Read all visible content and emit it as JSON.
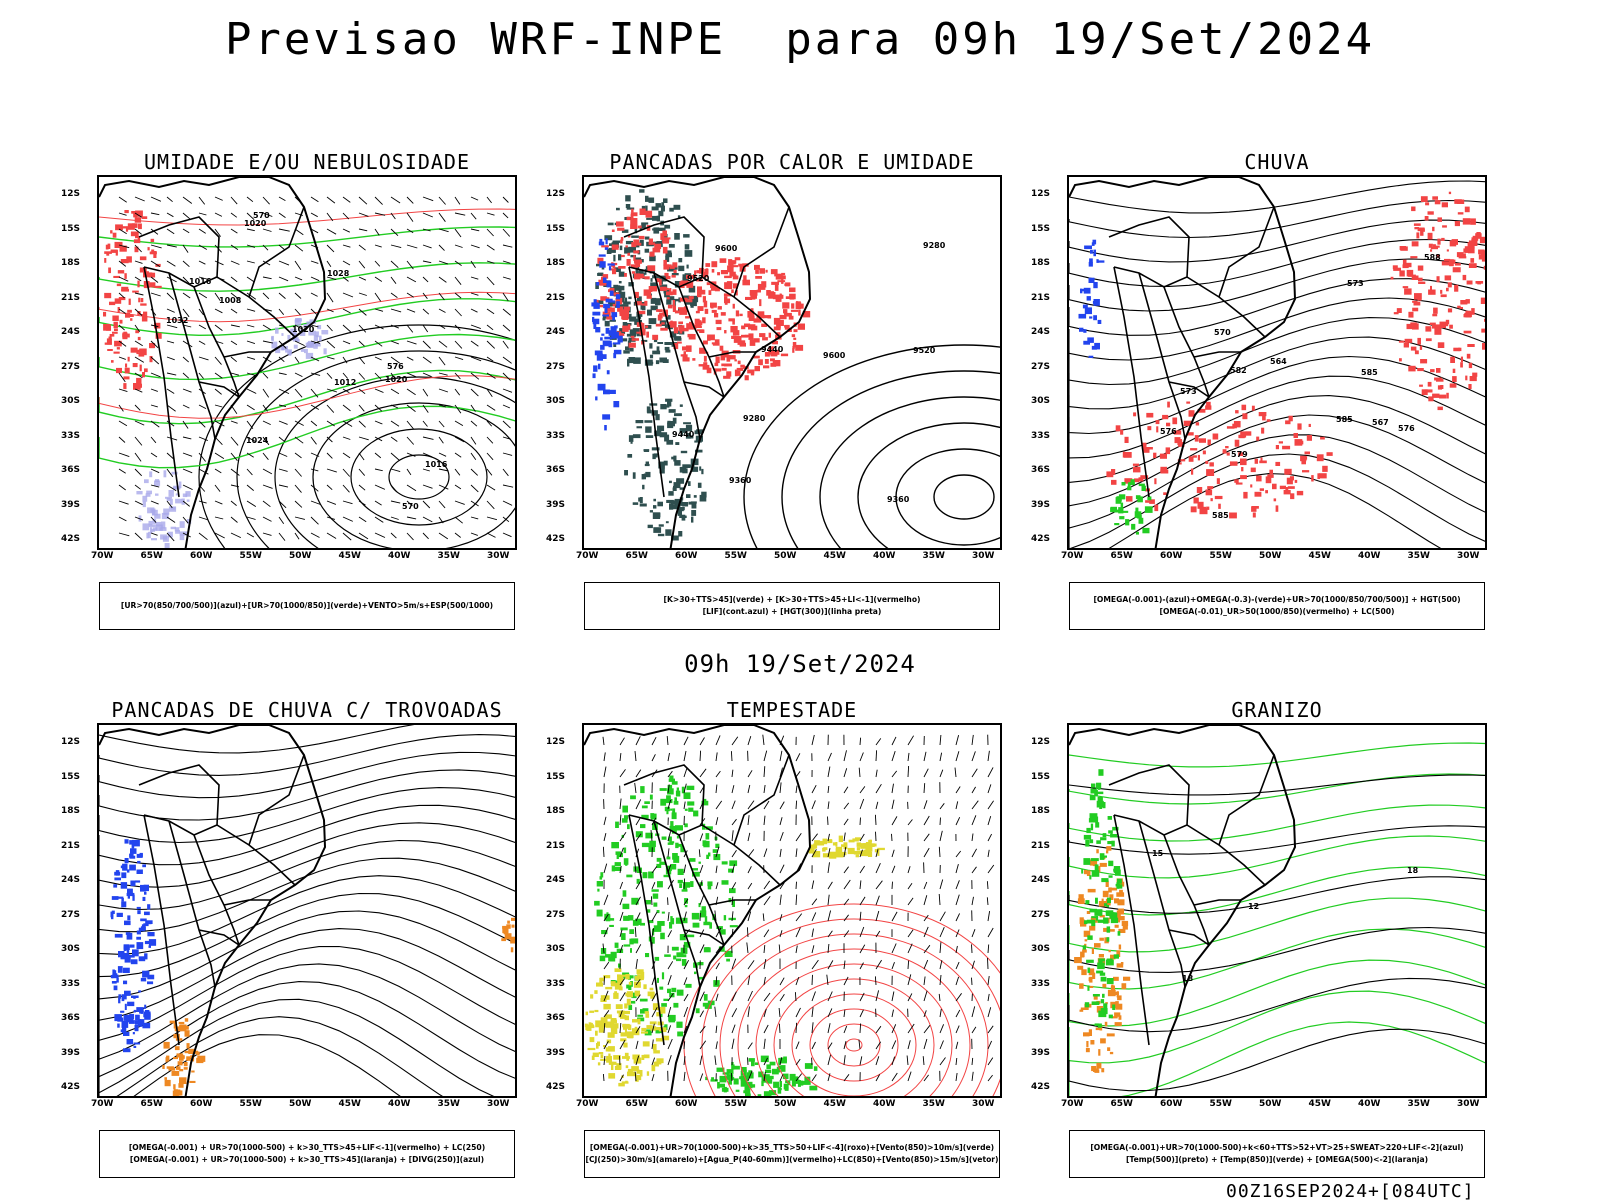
{
  "title": "Previsao WRF-INPE  para 09h 19/Set/2024",
  "mid_title": "09h 19/Set/2024",
  "footer": "00Z16SEP2024+[084UTC]",
  "axes": {
    "lat_labels": [
      "12S",
      "15S",
      "18S",
      "21S",
      "24S",
      "27S",
      "30S",
      "33S",
      "36S",
      "39S",
      "42S"
    ],
    "lon_labels": [
      "70W",
      "65W",
      "60W",
      "55W",
      "50W",
      "45W",
      "40W",
      "35W",
      "30W"
    ]
  },
  "colors": {
    "red": "#f24444",
    "green": "#22cc22",
    "dark_teal": "#2f4f4f",
    "blue": "#2244ee",
    "lavender": "#a9a9ea",
    "orange": "#ee8822",
    "yellow": "#e0d830"
  },
  "panels": [
    {
      "title": "UMIDADE E/OU NEBULOSIDADE",
      "legend": [
        "[UR>70(850/700/500)](azul)+[UR>70(1000/850)](verde)+VENTO>5m/s+ESP(500/1000)"
      ],
      "contour_labels": [
        "1008",
        "1016",
        "1020",
        "1020",
        "1024",
        "1028",
        "1032",
        "1012",
        "1016",
        "1020",
        "570",
        "576",
        "570"
      ]
    },
    {
      "title": "PANCADAS POR CALOR E UMIDADE",
      "legend": [
        "[K>30+TTS>45](verde) + [K>30+TTS>45+LI<-1](vermelho)",
        "[LIF](cont.azul) + [HGT(300)](linha preta)"
      ],
      "contour_labels": [
        "9600",
        "9520",
        "9440",
        "9360",
        "9440",
        "9520",
        "9600",
        "9360",
        "9280",
        "9280"
      ]
    },
    {
      "title": "CHUVA",
      "legend": [
        "[OMEGA(-0.001)-(azul)+OMEGA(-0.3)-(verde)+UR>70(1000/850/700/500)] + HGT(500)",
        "[OMEGA(-0.01)_UR>50(1000/850)(vermelho) + LC(500)"
      ],
      "contour_labels": [
        "585",
        "585",
        "582",
        "579",
        "576",
        "573",
        "573",
        "588",
        "585",
        "576",
        "570",
        "567",
        "564"
      ]
    },
    {
      "title": "PANCADAS DE CHUVA C/ TROVOADAS",
      "legend": [
        "[OMEGA(-0.001) + UR>70(1000-500) + k>30_TTS>45+LIF<-1](vermelho) + LC(250)",
        "[OMEGA(-0.001) + UR>70(1000-500) + k>30_TTS>45](laranja) + [DIVG(250)](azul)"
      ],
      "contour_labels": []
    },
    {
      "title": "TEMPESTADE",
      "legend": [
        "[OMEGA(-0.001)+UR>70(1000-500)+k>35_TTS>50+LIF<-4](roxo)+[Vento(850)>10m/s](verde)",
        "[CJ(250)>30m/s](amarelo)+[Agua_P(40-60mm)](vermelho)+LC(850)+[Vento(850)>15m/s](vetor)"
      ],
      "contour_labels": []
    },
    {
      "title": "GRANIZO",
      "legend": [
        "[OMEGA(-0.001)+UR>70(1000-500)+k<60+TTS>52+VT>25+SWEAT>220+LIF<-2](azul)",
        "[Temp(500)](preto) + [Temp(850)](verde) + [OMEGA(500)<-2](laranja)"
      ],
      "contour_labels": [
        "12",
        "15",
        "18",
        "18"
      ]
    }
  ]
}
